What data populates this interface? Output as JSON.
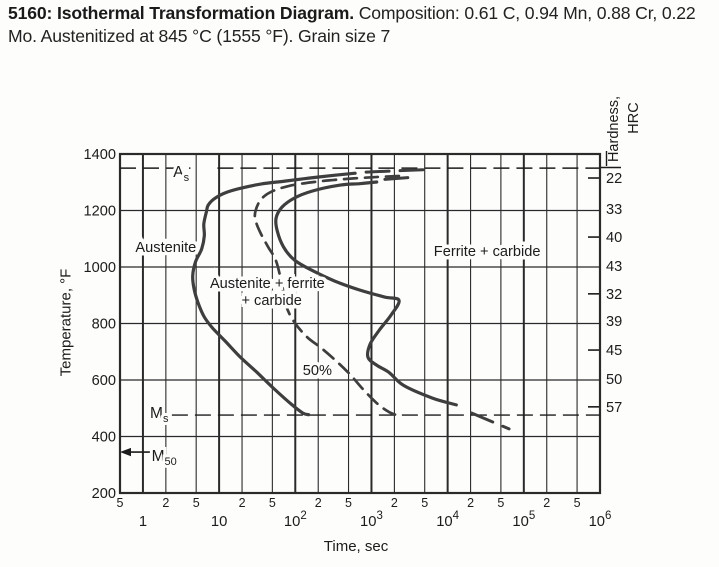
{
  "figure": {
    "caption_bold": "5160: Isothermal Transformation Diagram.",
    "caption_rest": " Composition: 0.61 C, 0.94 Mn, 0.88 Cr, 0.22 Mo. Austenitized at 845 °C (1555 °F). Grain size 7"
  },
  "axes": {
    "x_title": "Time, sec",
    "y_title": "Temperature, °F",
    "y2_title_line1": "Hardness,",
    "y2_title_line2": "HRC"
  },
  "chart_data": {
    "type": "line",
    "title": "5160 Isothermal Transformation Diagram",
    "xlabel": "Time, sec",
    "ylabel": "Temperature, °F",
    "y2label": "Hardness, HRC",
    "x_scale": "log",
    "xlim": [
      0.5,
      1000000
    ],
    "ylim": [
      200,
      1400
    ],
    "grid": true,
    "colors": {
      "ink": "#1c1c1c",
      "curve": "#3e3e3e",
      "grid": "#2a2a2a"
    },
    "y_ticks": [
      1400,
      1200,
      1000,
      800,
      600,
      400,
      200
    ],
    "x_major_ticks": [
      {
        "t": 1,
        "base": "1",
        "sup": ""
      },
      {
        "t": 10,
        "base": "10",
        "sup": ""
      },
      {
        "t": 100,
        "base": "10",
        "sup": "2"
      },
      {
        "t": 1000,
        "base": "10",
        "sup": "3"
      },
      {
        "t": 10000,
        "base": "10",
        "sup": "4"
      },
      {
        "t": 100000,
        "base": "10",
        "sup": "5"
      },
      {
        "t": 1000000,
        "base": "10",
        "sup": "6"
      }
    ],
    "x_minor_ticks": [
      {
        "t": 0.5,
        "label": "5"
      },
      {
        "t": 2,
        "label": "2"
      },
      {
        "t": 5,
        "label": "5"
      },
      {
        "t": 20,
        "label": "2"
      },
      {
        "t": 50,
        "label": "5"
      },
      {
        "t": 200,
        "label": "2"
      },
      {
        "t": 500,
        "label": "5"
      },
      {
        "t": 2000,
        "label": "2"
      },
      {
        "t": 5000,
        "label": "5"
      },
      {
        "t": 20000,
        "label": "2"
      },
      {
        "t": 50000,
        "label": "5"
      },
      {
        "t": 200000,
        "label": "2"
      },
      {
        "t": 500000,
        "label": "5"
      }
    ],
    "series": [
      {
        "name": "transformation-start",
        "style": "solid",
        "points": [
          [
            609,
            1332
          ],
          [
            333,
            1325
          ],
          [
            155,
            1315
          ],
          [
            73,
            1304
          ],
          [
            36,
            1294
          ],
          [
            20,
            1280
          ],
          [
            13,
            1266
          ],
          [
            8.9,
            1244
          ],
          [
            7.2,
            1219
          ],
          [
            6.8,
            1195
          ],
          [
            6.3,
            1152
          ],
          [
            6.4,
            1110
          ],
          [
            5.9,
            1064
          ],
          [
            4.9,
            1018
          ],
          [
            4.5,
            968
          ],
          [
            4.7,
            922
          ],
          [
            5.3,
            873
          ],
          [
            6.4,
            823
          ],
          [
            8.2,
            784
          ],
          [
            12,
            738
          ],
          [
            19,
            681
          ],
          [
            32,
            625
          ],
          [
            53,
            568
          ],
          [
            88,
            515
          ],
          [
            126,
            483
          ],
          [
            150,
            477
          ]
        ]
      },
      {
        "name": "start-asymptote",
        "style": "dashed-long",
        "points": [
          [
            850,
            1336
          ],
          [
            5500,
            1345
          ]
        ]
      },
      {
        "name": "fifty-percent",
        "style": "dashed",
        "points": [
          [
            2290,
            1322
          ],
          [
            1080,
            1318
          ],
          [
            437,
            1311
          ],
          [
            177,
            1301
          ],
          [
            83,
            1287
          ],
          [
            48,
            1266
          ],
          [
            35,
            1237
          ],
          [
            30,
            1198
          ],
          [
            30,
            1166
          ],
          [
            35,
            1120
          ],
          [
            44,
            1071
          ],
          [
            56,
            1021
          ],
          [
            67,
            936
          ],
          [
            76,
            862
          ],
          [
            97,
            805
          ],
          [
            143,
            752
          ],
          [
            220,
            713
          ],
          [
            345,
            667
          ],
          [
            530,
            618
          ],
          [
            788,
            565
          ],
          [
            1130,
            522
          ],
          [
            1530,
            494
          ],
          [
            1950,
            479
          ],
          [
            2400,
            476
          ]
        ]
      },
      {
        "name": "transformation-finish",
        "style": "solid",
        "points": [
          [
            1170,
            1301
          ],
          [
            700,
            1295
          ],
          [
            390,
            1290
          ],
          [
            168,
            1269
          ],
          [
            97,
            1244
          ],
          [
            67,
            1212
          ],
          [
            56,
            1173
          ],
          [
            58,
            1127
          ],
          [
            70,
            1071
          ],
          [
            97,
            1025
          ],
          [
            163,
            989
          ],
          [
            330,
            950
          ],
          [
            690,
            919
          ],
          [
            1470,
            894
          ],
          [
            2300,
            882
          ],
          [
            1810,
            830
          ],
          [
            1270,
            777
          ],
          [
            960,
            727
          ],
          [
            900,
            680
          ],
          [
            1180,
            652
          ],
          [
            1700,
            627
          ],
          [
            2640,
            581
          ],
          [
            6300,
            536
          ],
          [
            13000,
            512
          ]
        ]
      },
      {
        "name": "finish-asymptote",
        "style": "dashed-long",
        "points": [
          [
            1500,
            1310
          ],
          [
            3200,
            1317
          ]
        ]
      },
      {
        "name": "finish-tail",
        "style": "dashed-long",
        "points": [
          [
            20600,
            483
          ],
          [
            64000,
            427
          ]
        ]
      }
    ],
    "reference_lines": [
      {
        "id": "As",
        "base": "A",
        "sub": "s",
        "T": 1350,
        "segments": [
          [
            0.5,
            4.2
          ],
          [
            9.5,
            1000000
          ]
        ],
        "label_t": 2.5,
        "label_dy": 9,
        "arrow": false
      },
      {
        "id": "Ms",
        "base": "M",
        "sub": "s",
        "T": 476,
        "segments": [
          [
            2.4,
            1000000
          ]
        ],
        "label_t": 1.24,
        "label_dy": 3,
        "arrow": false
      },
      {
        "id": "M50",
        "base": "M",
        "sub": "50",
        "T": 345,
        "segments": [],
        "label_t": 1.3,
        "label_dy": 9,
        "arrow": true
      }
    ],
    "region_labels": [
      {
        "text": "Austenite",
        "t": 2.0,
        "T": 1071
      },
      {
        "text": "Austenite + ferrite",
        "t": 43,
        "T": 943
      },
      {
        "text": "+ carbide",
        "t": 49,
        "T": 883
      },
      {
        "text": "Ferrite + carbide",
        "t": 33000,
        "T": 1057
      },
      {
        "text": "50%",
        "t": 195,
        "T": 635
      }
    ],
    "hardness_scale": {
      "entries": [
        {
          "v": "22",
          "T": 1315,
          "tick": true
        },
        {
          "v": "33",
          "T": 1205,
          "tick": false
        },
        {
          "v": "40",
          "T": 1106,
          "tick": true
        },
        {
          "v": "43",
          "T": 1004,
          "tick": false
        },
        {
          "v": "32",
          "T": 905,
          "tick": true
        },
        {
          "v": "39",
          "T": 809,
          "tick": false
        },
        {
          "v": "45",
          "T": 706,
          "tick": true
        },
        {
          "v": "50",
          "T": 604,
          "tick": false
        },
        {
          "v": "57",
          "T": 505,
          "tick": true
        }
      ]
    }
  }
}
